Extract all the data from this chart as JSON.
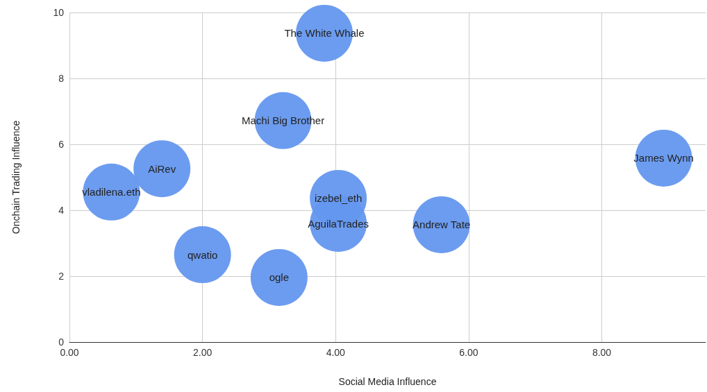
{
  "chart_data": {
    "type": "bubble",
    "xlabel": "Social Media Influence",
    "ylabel": "Onchain Trading Influence",
    "x": [
      3.83,
      3.21,
      1.39,
      0.63,
      4.04,
      4.04,
      5.59,
      8.93,
      2.0,
      3.15
    ],
    "values": [
      9.37,
      6.72,
      5.26,
      4.55,
      4.36,
      3.6,
      3.56,
      5.58,
      2.65,
      1.96
    ],
    "sizes": [
      1,
      1,
      1,
      1,
      1,
      1,
      1,
      1,
      1,
      1
    ],
    "color": "#6497ee",
    "xlim": [
      0,
      9.56
    ],
    "xticks": [
      {
        "value": 0,
        "label": "0.00"
      },
      {
        "value": 2,
        "label": "2.00"
      },
      {
        "value": 4,
        "label": "4.00"
      },
      {
        "value": 6,
        "label": "6.00"
      },
      {
        "value": 8,
        "label": "8.00"
      }
    ],
    "ylim": [
      0,
      10
    ],
    "yticks": [
      0,
      2,
      4,
      6,
      8,
      10
    ],
    "grid": true,
    "annotations": [
      {
        "text": "The White Whale",
        "x": 3.83,
        "y": 9.37
      },
      {
        "text": "Machi Big Brother",
        "x": 3.21,
        "y": 6.72
      },
      {
        "text": "AiRev",
        "x": 1.39,
        "y": 5.26
      },
      {
        "text": "vladilena.eth",
        "x": 0.63,
        "y": 4.55
      },
      {
        "text": "izebel_eth",
        "x": 4.04,
        "y": 4.36
      },
      {
        "text": "AguilaTrades",
        "x": 4.04,
        "y": 3.6
      },
      {
        "text": "Andrew Tate",
        "x": 5.59,
        "y": 3.56
      },
      {
        "text": "James Wynn",
        "x": 8.93,
        "y": 5.58
      },
      {
        "text": "qwatio",
        "x": 2.0,
        "y": 2.65
      },
      {
        "text": "ogle",
        "x": 3.15,
        "y": 1.96
      }
    ]
  }
}
